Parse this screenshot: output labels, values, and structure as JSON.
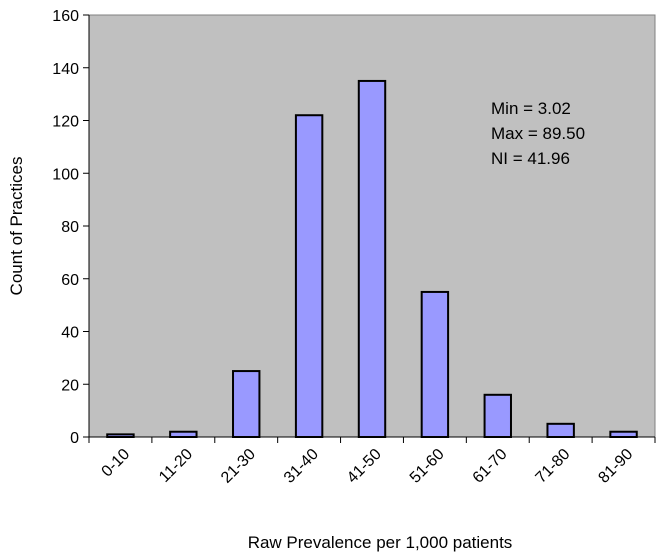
{
  "chart_data": {
    "type": "bar",
    "title": "",
    "xlabel": "Raw Prevalence per 1,000 patients",
    "ylabel": "Count of Practices",
    "categories": [
      "0-10",
      "11-20",
      "21-30",
      "31-40",
      "41-50",
      "51-60",
      "61-70",
      "71-80",
      "81-90"
    ],
    "values": [
      1,
      2,
      25,
      122,
      135,
      55,
      16,
      5,
      2
    ],
    "ylim": [
      0,
      160
    ],
    "yticks": [
      0,
      20,
      40,
      60,
      80,
      100,
      120,
      140,
      160
    ],
    "grid": false,
    "legend": "none",
    "annotations": [
      "Min = 3.02",
      "Max = 89.50",
      "NI = 41.96"
    ]
  },
  "colors": {
    "plot_background": "#c0c0c0",
    "bar_fill": "#9999ff",
    "bar_stroke": "#000000"
  }
}
